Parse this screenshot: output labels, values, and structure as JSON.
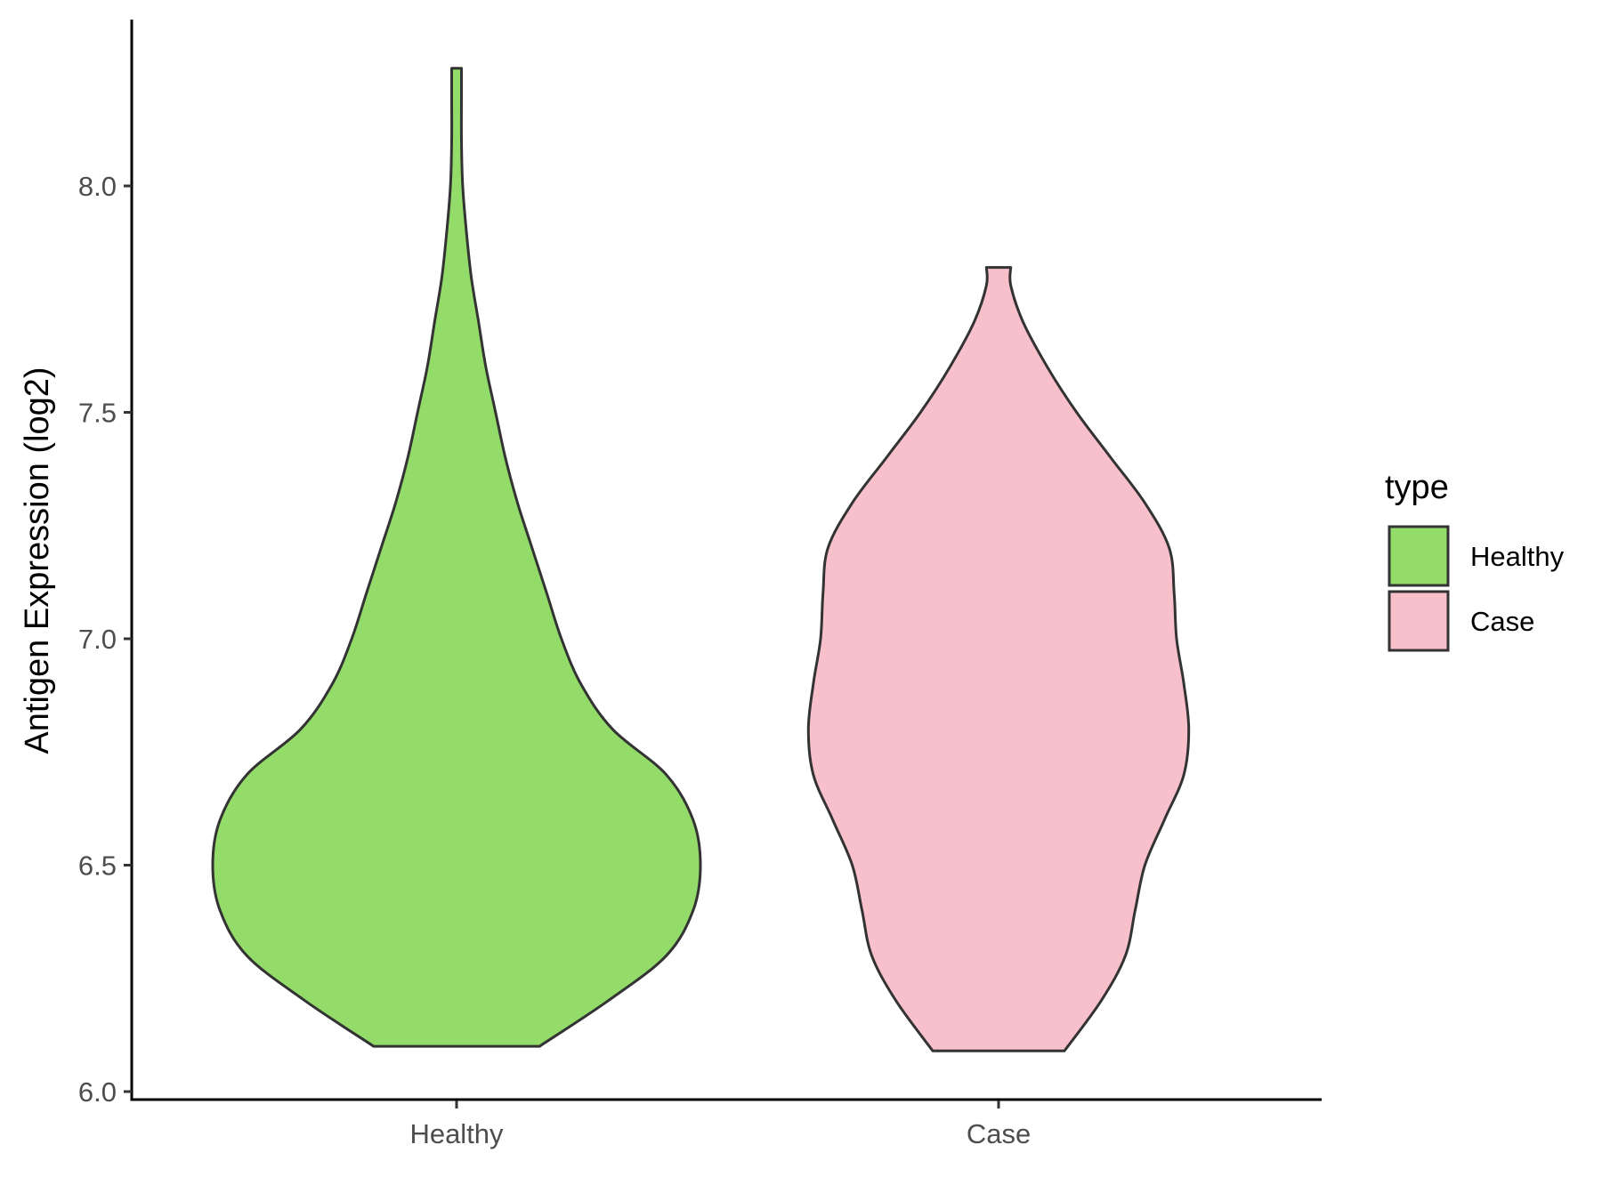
{
  "chart_data": {
    "type": "violin",
    "title": "",
    "xlabel": "",
    "ylabel": "Antigen Expression (log2)",
    "ylim": [
      5.98,
      8.38
    ],
    "yticks": [
      "6.0",
      "6.5",
      "7.0",
      "7.5",
      "8.0"
    ],
    "categories": [
      "Healthy",
      "Case"
    ],
    "legend": {
      "title": "type",
      "position": "right",
      "entries": [
        {
          "label": "Healthy",
          "color": "#93dc6a"
        },
        {
          "label": "Case",
          "color": "#f7c0cb"
        }
      ]
    },
    "grid": false,
    "series": [
      {
        "category": "Healthy",
        "color": "#93dc6a",
        "min": 6.1,
        "max": 8.26,
        "profile": [
          [
            6.1,
            0.34
          ],
          [
            6.2,
            0.62
          ],
          [
            6.3,
            0.86
          ],
          [
            6.4,
            0.97
          ],
          [
            6.5,
            1.0
          ],
          [
            6.6,
            0.97
          ],
          [
            6.7,
            0.86
          ],
          [
            6.8,
            0.64
          ],
          [
            6.9,
            0.51
          ],
          [
            7.0,
            0.43
          ],
          [
            7.1,
            0.37
          ],
          [
            7.2,
            0.31
          ],
          [
            7.3,
            0.25
          ],
          [
            7.4,
            0.2
          ],
          [
            7.5,
            0.16
          ],
          [
            7.6,
            0.12
          ],
          [
            7.7,
            0.09
          ],
          [
            7.8,
            0.06
          ],
          [
            7.9,
            0.04
          ],
          [
            8.0,
            0.025
          ],
          [
            8.1,
            0.02
          ],
          [
            8.2,
            0.02
          ],
          [
            8.26,
            0.02
          ]
        ]
      },
      {
        "category": "Case",
        "color": "#f7c0cb",
        "min": 6.09,
        "max": 7.82,
        "profile": [
          [
            6.09,
            0.27
          ],
          [
            6.2,
            0.42
          ],
          [
            6.3,
            0.52
          ],
          [
            6.4,
            0.56
          ],
          [
            6.5,
            0.6
          ],
          [
            6.6,
            0.68
          ],
          [
            6.7,
            0.76
          ],
          [
            6.8,
            0.78
          ],
          [
            6.9,
            0.76
          ],
          [
            7.0,
            0.73
          ],
          [
            7.1,
            0.72
          ],
          [
            7.2,
            0.7
          ],
          [
            7.3,
            0.6
          ],
          [
            7.4,
            0.46
          ],
          [
            7.5,
            0.32
          ],
          [
            7.6,
            0.2
          ],
          [
            7.7,
            0.1
          ],
          [
            7.78,
            0.05
          ],
          [
            7.82,
            0.05
          ]
        ]
      }
    ]
  }
}
